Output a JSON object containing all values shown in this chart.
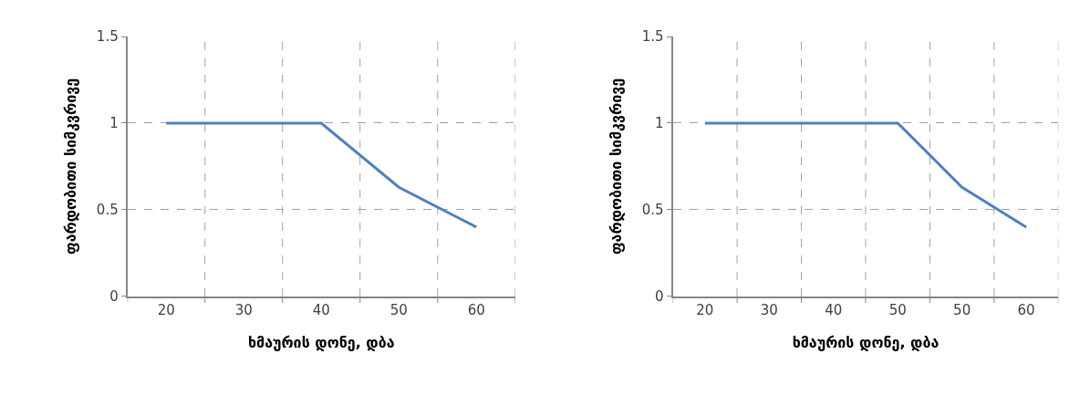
{
  "chart_data": [
    {
      "type": "line",
      "categories": [
        "20",
        "30",
        "40",
        "50",
        "60"
      ],
      "xlabel": "ხმაურის დონე, დბა",
      "ylabel": "ფარდობითი სიმკვრივე",
      "series": [
        {
          "color": "#4f81bd",
          "values": [
            1,
            1,
            1,
            0.63,
            0.4
          ]
        }
      ],
      "ylim": [
        0,
        1.5
      ],
      "yticks": [
        0,
        0.5,
        1,
        1.5
      ],
      "grid": true,
      "marker": "none",
      "line_style": "solid"
    },
    {
      "type": "line",
      "categories": [
        "20",
        "30",
        "40",
        "50",
        "50",
        "60"
      ],
      "xlabel": "ხმაურის დონე, დბა",
      "ylabel": "ფარდობითი სიმკვრივე",
      "series": [
        {
          "color": "#4f81bd",
          "values": [
            1,
            1,
            1,
            1,
            0.63,
            0.4
          ]
        }
      ],
      "ylim": [
        0,
        1.5
      ],
      "yticks": [
        0,
        0.5,
        1,
        1.5
      ],
      "grid": true,
      "marker": "none",
      "line_style": "solid"
    }
  ]
}
